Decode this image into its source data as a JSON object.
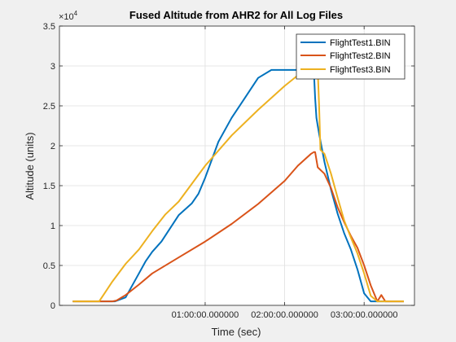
{
  "chart_data": {
    "type": "line",
    "title": "Fused Altitude from AHR2 for All Log Files",
    "xlabel": "Time (sec)",
    "ylabel": "Altitude (units)",
    "y_exponent_label": "×10",
    "y_exponent_power": "4",
    "xlim_minutes": [
      -50,
      218
    ],
    "ylim": [
      0,
      3.5
    ],
    "y_ticks": [
      0,
      0.5,
      1,
      1.5,
      2,
      2.5,
      3,
      3.5
    ],
    "y_tick_labels": [
      "0",
      "0.5",
      "1",
      "1.5",
      "2",
      "2.5",
      "3",
      "3.5"
    ],
    "x_ticks_minutes": [
      60,
      120,
      180
    ],
    "x_tick_labels": [
      "01:00:00.000000",
      "02:00:00.000000",
      "03:00:00.000000"
    ],
    "grid": true,
    "legend_position": "top-right",
    "series": [
      {
        "name": "FlightTest1.BIN",
        "color": "#0072BD",
        "x": [
          -40,
          -10,
          -8,
          0,
          10,
          15,
          20,
          27,
          40,
          50,
          55,
          60,
          70,
          80,
          90,
          100,
          110,
          120,
          130,
          140,
          142,
          143,
          144,
          145,
          146,
          150,
          155,
          160,
          165,
          170,
          175,
          180,
          185,
          190,
          195,
          200,
          210
        ],
        "y": [
          0.05,
          0.05,
          0.05,
          0.1,
          0.4,
          0.55,
          0.67,
          0.8,
          1.13,
          1.28,
          1.4,
          1.6,
          2.05,
          2.35,
          2.6,
          2.85,
          2.95,
          2.95,
          2.95,
          2.95,
          2.95,
          2.6,
          2.35,
          2.25,
          2.15,
          1.8,
          1.45,
          1.15,
          0.9,
          0.7,
          0.45,
          0.15,
          0.05,
          0.05,
          0.05,
          0.05,
          0.05
        ],
        "note": "approximate"
      },
      {
        "name": "FlightTest2.BIN",
        "color": "#D95319",
        "x": [
          -40,
          -10,
          -7,
          0,
          10,
          20,
          40,
          60,
          80,
          100,
          120,
          130,
          140,
          142,
          143,
          145,
          150,
          155,
          160,
          165,
          170,
          175,
          180,
          185,
          190,
          193,
          196,
          200,
          210
        ],
        "y": [
          0.05,
          0.05,
          0.06,
          0.13,
          0.26,
          0.4,
          0.6,
          0.8,
          1.02,
          1.27,
          1.56,
          1.75,
          1.9,
          1.92,
          1.92,
          1.73,
          1.65,
          1.47,
          1.23,
          1.04,
          0.87,
          0.72,
          0.5,
          0.25,
          0.05,
          0.13,
          0.05,
          0.05,
          0.05
        ]
      },
      {
        "name": "FlightTest3.BIN",
        "color": "#EDB120",
        "x": [
          -40,
          -20,
          -10,
          0,
          10,
          20,
          30,
          40,
          60,
          80,
          100,
          120,
          135,
          142,
          145,
          146,
          147,
          150,
          155,
          160,
          165,
          170,
          175,
          180,
          185,
          190,
          200,
          210
        ],
        "y": [
          0.05,
          0.05,
          0.3,
          0.52,
          0.7,
          0.93,
          1.14,
          1.3,
          1.75,
          2.13,
          2.45,
          2.75,
          2.95,
          2.95,
          2.95,
          2.5,
          1.95,
          1.9,
          1.65,
          1.35,
          1.06,
          0.85,
          0.65,
          0.4,
          0.12,
          0.05,
          0.05,
          0.05
        ]
      }
    ]
  }
}
